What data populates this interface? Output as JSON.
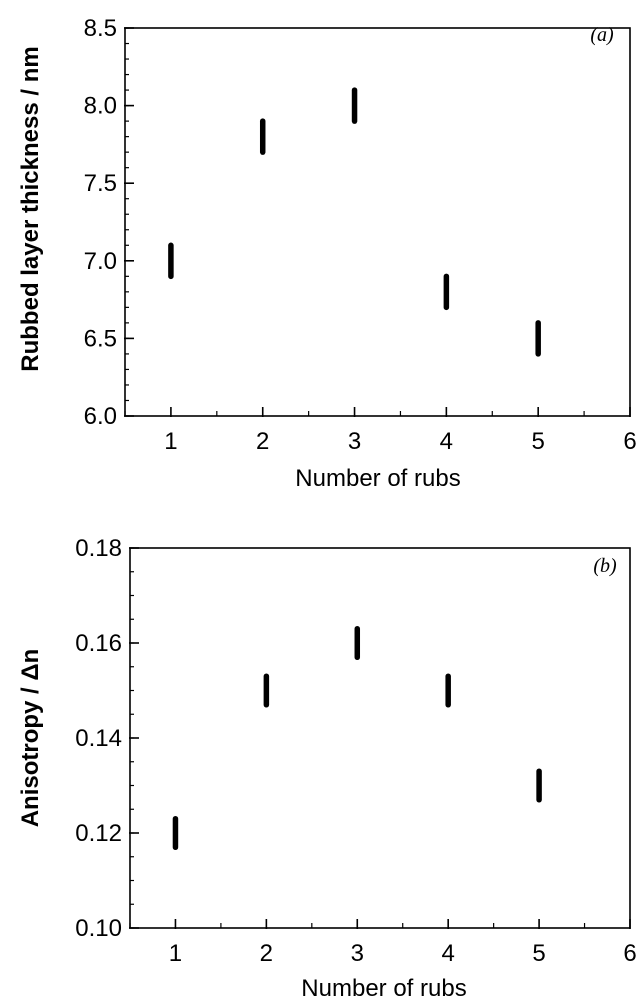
{
  "chart_data": [
    {
      "type": "scatter",
      "panel_label": "(a)",
      "xlabel": "Number of rubs",
      "ylabel": "Rubbed layer thickness / nm",
      "xlim": [
        0.5,
        6
      ],
      "ylim": [
        6.0,
        8.5
      ],
      "x_ticks": [
        1,
        2,
        3,
        4,
        5,
        6
      ],
      "x_tick_labels": [
        "1",
        "2",
        "3",
        "4",
        "5",
        "6"
      ],
      "y_ticks": [
        6.0,
        6.5,
        7.0,
        7.5,
        8.0,
        8.5
      ],
      "y_tick_labels": [
        "6.0",
        "6.5",
        "7.0",
        "7.5",
        "8.0",
        "8.5"
      ],
      "y_minor_step": 0.1,
      "grid": false,
      "marker": "vertical-bar",
      "color": "#000000",
      "x": [
        1,
        2,
        3,
        4,
        5
      ],
      "y": [
        7.0,
        7.8,
        8.0,
        6.8,
        6.5
      ],
      "marker_half_span": 0.1
    },
    {
      "type": "scatter",
      "panel_label": "(b)",
      "xlabel": "Number of rubs",
      "ylabel": "Anisotropy / Δn",
      "xlim": [
        0.5,
        6
      ],
      "ylim": [
        0.1,
        0.18
      ],
      "x_ticks": [
        1,
        2,
        3,
        4,
        5,
        6
      ],
      "x_tick_labels": [
        "1",
        "2",
        "3",
        "4",
        "5",
        "6"
      ],
      "y_ticks": [
        0.1,
        0.12,
        0.14,
        0.16,
        0.18
      ],
      "y_tick_labels": [
        "0.10",
        "0.12",
        "0.14",
        "0.16",
        "0.18"
      ],
      "y_minor_step": 0.005,
      "grid": false,
      "marker": "vertical-bar",
      "color": "#000000",
      "x": [
        1,
        2,
        3,
        4,
        5
      ],
      "y": [
        0.12,
        0.15,
        0.16,
        0.15,
        0.13
      ],
      "marker_half_span": 0.003
    }
  ]
}
